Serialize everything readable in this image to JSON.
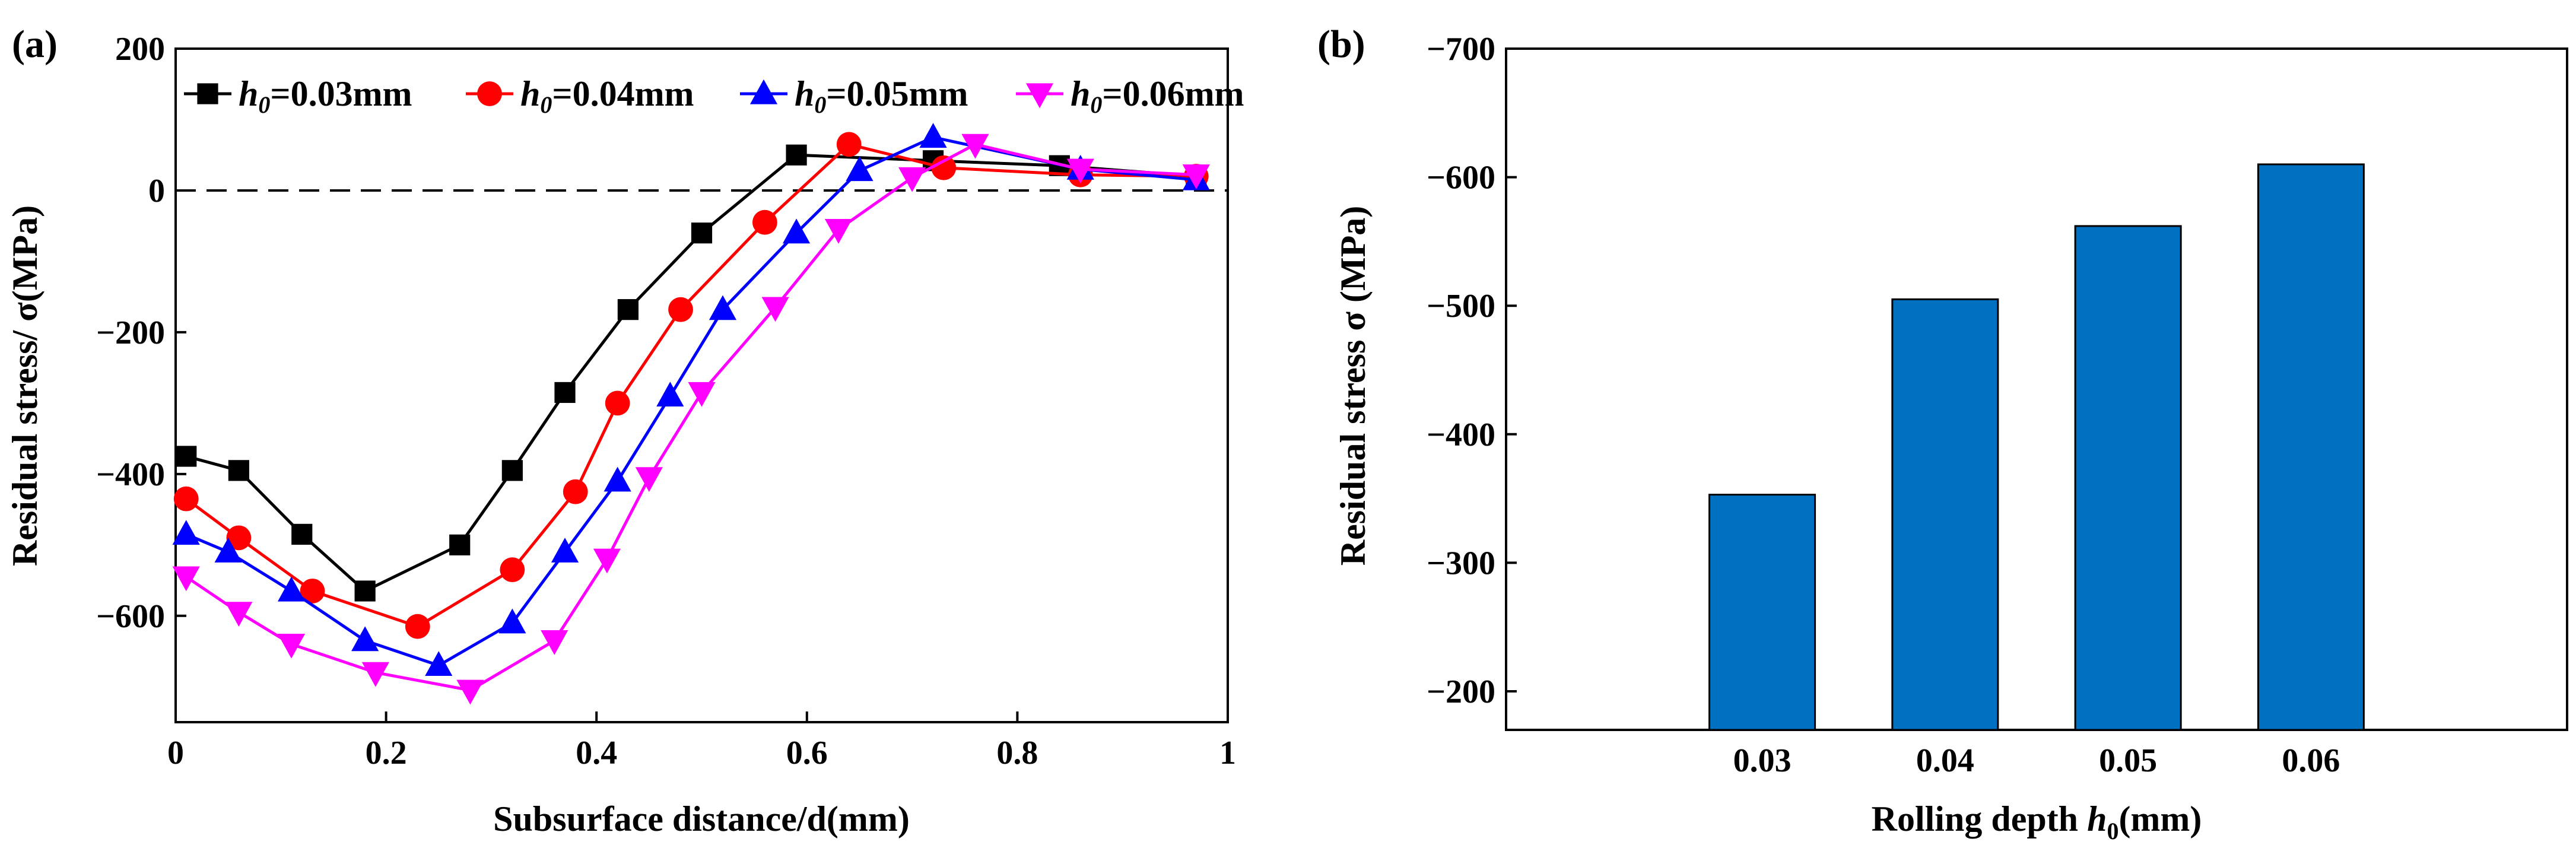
{
  "chart_data": [
    {
      "panel": "(a)",
      "type": "line",
      "xlabel": "Subsurface distance/d(mm)",
      "ylabel": "Residual stress/ σ(MPa)",
      "xlim": [
        0,
        1
      ],
      "ylim": [
        -750,
        200
      ],
      "xticks": [
        "0",
        "0.2",
        "0.4",
        "0.6",
        "0.8",
        "1"
      ],
      "xtick_values": [
        0,
        0.2,
        0.4,
        0.6,
        0.8,
        1
      ],
      "yticks": [
        "200",
        "0",
        "−200",
        "−400",
        "−600"
      ],
      "ytick_values": [
        200,
        0,
        -200,
        -400,
        -600
      ],
      "zero_line": "dashed",
      "legend_position": "top",
      "series": [
        {
          "name_prefix": "h",
          "name_sub": "0",
          "name_suffix": "=0.03mm",
          "color": "#000000",
          "marker": "square",
          "x": [
            0.01,
            0.06,
            0.12,
            0.18,
            0.27,
            0.32,
            0.37,
            0.43,
            0.5,
            0.59,
            0.72,
            0.84,
            0.97
          ],
          "y": [
            -375,
            -395,
            -485,
            -565,
            -500,
            -395,
            -285,
            -168,
            -60,
            50,
            42,
            35,
            20
          ]
        },
        {
          "name_prefix": "h",
          "name_sub": "0",
          "name_suffix": "=0.04mm",
          "color": "#ff0000",
          "marker": "circle",
          "x": [
            0.01,
            0.06,
            0.13,
            0.23,
            0.32,
            0.38,
            0.42,
            0.48,
            0.56,
            0.64,
            0.73,
            0.86,
            0.97
          ],
          "y": [
            -435,
            -490,
            -565,
            -615,
            -535,
            -425,
            -300,
            -168,
            -45,
            65,
            32,
            22,
            20
          ]
        },
        {
          "name_prefix": "h",
          "name_sub": "0",
          "name_suffix": "=0.05mm",
          "color": "#0000ff",
          "marker": "triangle-up",
          "x": [
            0.01,
            0.05,
            0.11,
            0.18,
            0.25,
            0.32,
            0.37,
            0.42,
            0.47,
            0.52,
            0.59,
            0.65,
            0.72,
            0.86,
            0.97
          ],
          "y": [
            -485,
            -510,
            -565,
            -635,
            -670,
            -610,
            -510,
            -410,
            -290,
            -168,
            -60,
            28,
            75,
            30,
            15
          ]
        },
        {
          "name_prefix": "h",
          "name_sub": "0",
          "name_suffix": "=0.06mm",
          "color": "#ff00ff",
          "marker": "triangle-down",
          "x": [
            0.01,
            0.06,
            0.11,
            0.19,
            0.28,
            0.36,
            0.41,
            0.45,
            0.5,
            0.57,
            0.63,
            0.7,
            0.76,
            0.86,
            0.97
          ],
          "y": [
            -545,
            -595,
            -640,
            -680,
            -705,
            -635,
            -520,
            -405,
            -285,
            -165,
            -55,
            18,
            65,
            30,
            22
          ]
        }
      ]
    },
    {
      "panel": "(b)",
      "type": "bar",
      "xlabel_prefix": "Rolling depth ",
      "xlabel_var": "h",
      "xlabel_sub": "0",
      "xlabel_suffix": "(mm)",
      "ylabel": "Residual stress σ (MPa)",
      "categories": [
        "0.03",
        "0.04",
        "0.05",
        "0.06"
      ],
      "values": [
        -353,
        -505,
        -562,
        -610
      ],
      "ylim": [
        -170,
        -700
      ],
      "yticks": [
        "−700",
        "−600",
        "−500",
        "−400",
        "−300",
        "−200"
      ],
      "ytick_values": [
        -700,
        -600,
        -500,
        -400,
        -300,
        -200
      ],
      "bar_color": "#0070c0"
    }
  ]
}
